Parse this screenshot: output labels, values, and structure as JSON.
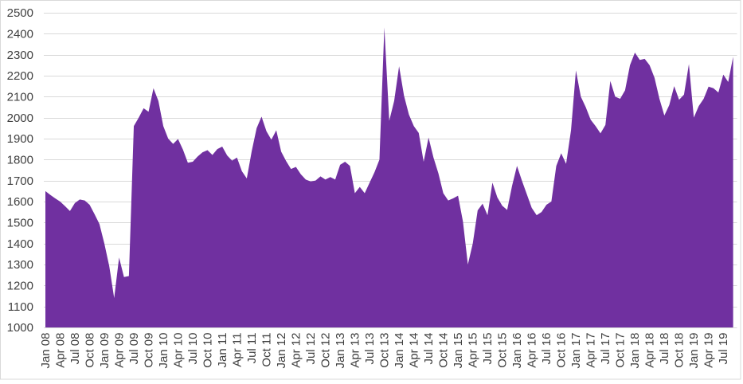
{
  "chart_data": {
    "type": "area",
    "title": "",
    "xlabel": "",
    "ylabel": "",
    "ylim": [
      1000,
      2500
    ],
    "ytick_step": 100,
    "x_label_every": 3,
    "grid": true,
    "legend": false,
    "fill_color": "#7030A0",
    "gridline_color": "#D9D9D9",
    "axis_label_color": "#404040",
    "border_color": "#D9D9D9",
    "categories": [
      "Jan 08",
      "Feb 08",
      "Mar 08",
      "Apr 08",
      "May 08",
      "Jun 08",
      "Jul 08",
      "Aug 08",
      "Sep 08",
      "Oct 08",
      "Nov 08",
      "Dec 08",
      "Jan 09",
      "Feb 09",
      "Mar 09",
      "Apr 09",
      "May 09",
      "Jun 09",
      "Jul 09",
      "Aug 09",
      "Sep 09",
      "Oct 09",
      "Nov 09",
      "Dec 09",
      "Jan 10",
      "Feb 10",
      "Mar 10",
      "Apr 10",
      "May 10",
      "Jun 10",
      "Jul 10",
      "Aug 10",
      "Sep 10",
      "Oct 10",
      "Nov 10",
      "Dec 10",
      "Jan 11",
      "Feb 11",
      "Mar 11",
      "Apr 11",
      "May 11",
      "Jun 11",
      "Jul 11",
      "Aug 11",
      "Sep 11",
      "Oct 11",
      "Nov 11",
      "Dec 11",
      "Jan 12",
      "Feb 12",
      "Mar 12",
      "Apr 12",
      "May 12",
      "Jun 12",
      "Jul 12",
      "Aug 12",
      "Sep 12",
      "Oct 12",
      "Nov 12",
      "Dec 12",
      "Jan 13",
      "Feb 13",
      "Mar 13",
      "Apr 13",
      "May 13",
      "Jun 13",
      "Jul 13",
      "Aug 13",
      "Sep 13",
      "Oct 13",
      "Nov 13",
      "Dec 13",
      "Jan 14",
      "Feb 14",
      "Mar 14",
      "Apr 14",
      "May 14",
      "Jun 14",
      "Jul 14",
      "Aug 14",
      "Sep 14",
      "Oct 14",
      "Nov 14",
      "Dec 14",
      "Jan 15",
      "Feb 15",
      "Mar 15",
      "Apr 15",
      "May 15",
      "Jun 15",
      "Jul 15",
      "Aug 15",
      "Sep 15",
      "Oct 15",
      "Nov 15",
      "Dec 15",
      "Jan 16",
      "Feb 16",
      "Mar 16",
      "Apr 16",
      "May 16",
      "Jun 16",
      "Jul 16",
      "Aug 16",
      "Sep 16",
      "Oct 16",
      "Nov 16",
      "Dec 16",
      "Jan 17",
      "Feb 17",
      "Mar 17",
      "Apr 17",
      "May 17",
      "Jun 17",
      "Jul 17",
      "Aug 17",
      "Sep 17",
      "Oct 17",
      "Nov 17",
      "Dec 17",
      "Jan 18",
      "Feb 18",
      "Mar 18",
      "Apr 18",
      "May 18",
      "Jun 18",
      "Jul 18",
      "Aug 18",
      "Sep 18",
      "Oct 18",
      "Nov 18",
      "Dec 18",
      "Jan 19",
      "Feb 19",
      "Mar 19",
      "Apr 19",
      "May 19",
      "Jun 19",
      "Jul 19",
      "Aug 19",
      "Sep 19"
    ],
    "values": [
      1650,
      1632,
      1615,
      1600,
      1578,
      1555,
      1593,
      1610,
      1605,
      1585,
      1540,
      1493,
      1400,
      1292,
      1140,
      1333,
      1240,
      1245,
      1960,
      2000,
      2045,
      2028,
      2140,
      2080,
      1960,
      1900,
      1875,
      1898,
      1848,
      1785,
      1790,
      1815,
      1835,
      1845,
      1822,
      1850,
      1862,
      1820,
      1795,
      1810,
      1745,
      1710,
      1840,
      1950,
      2005,
      1935,
      1895,
      1940,
      1838,
      1793,
      1755,
      1765,
      1730,
      1705,
      1696,
      1700,
      1720,
      1705,
      1717,
      1705,
      1775,
      1790,
      1770,
      1640,
      1670,
      1640,
      1690,
      1740,
      1800,
      2430,
      1985,
      2080,
      2245,
      2105,
      2015,
      1960,
      1927,
      1790,
      1905,
      1810,
      1735,
      1640,
      1605,
      1615,
      1628,
      1505,
      1300,
      1400,
      1558,
      1590,
      1535,
      1690,
      1620,
      1580,
      1560,
      1675,
      1770,
      1700,
      1635,
      1570,
      1535,
      1550,
      1585,
      1600,
      1770,
      1830,
      1780,
      1940,
      2225,
      2100,
      2050,
      1990,
      1960,
      1925,
      1965,
      2175,
      2100,
      2090,
      2130,
      2250,
      2310,
      2275,
      2280,
      2250,
      2190,
      2090,
      2010,
      2060,
      2150,
      2085,
      2110,
      2255,
      2000,
      2055,
      2090,
      2148,
      2140,
      2120,
      2205,
      2170,
      2290
    ]
  }
}
